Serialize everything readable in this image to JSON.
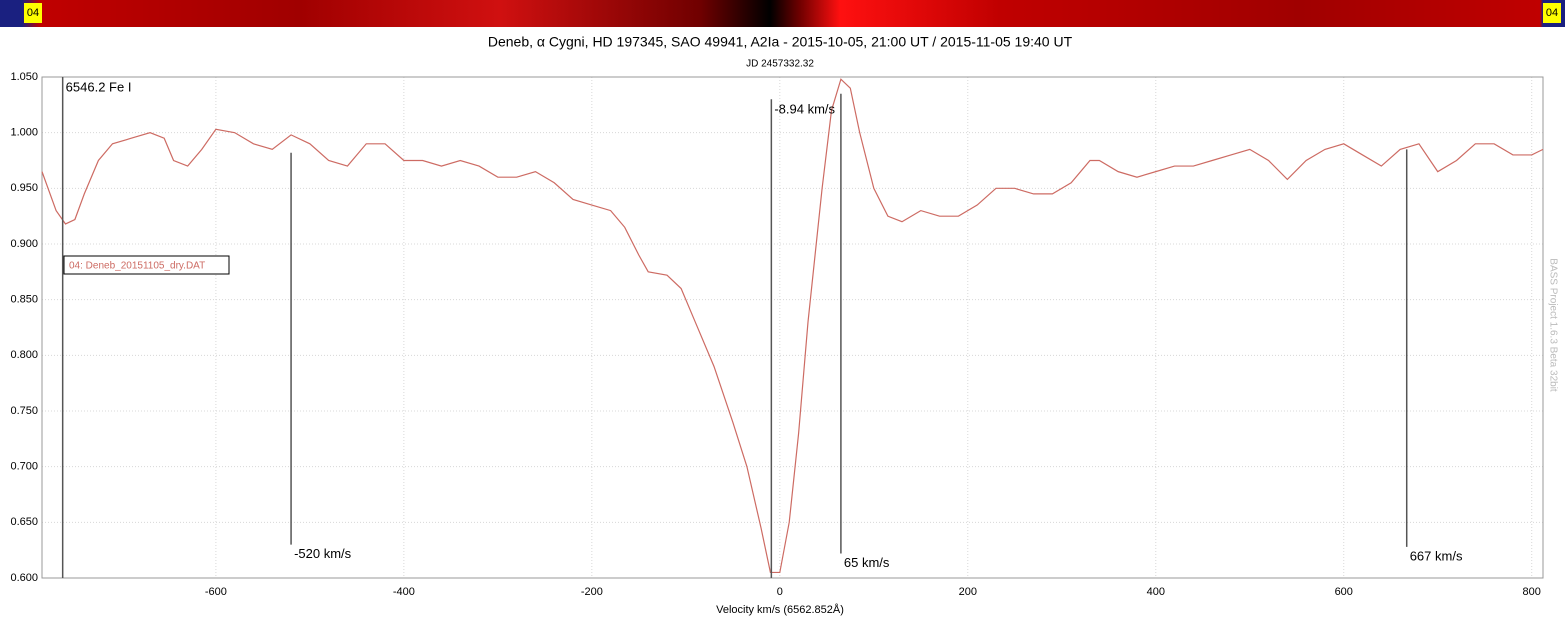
{
  "badge_left": "04",
  "badge_right": "04",
  "watermark": "BASS Project 1.6.3 Beta 32bit",
  "chart_data": {
    "type": "line",
    "title": "Deneb, α Cygni, HD 197345, SAO 49941, A2Ia - 2015-10-05, 21:00 UT / 2015-11-05 19:40 UT",
    "subtitle": "JD 2457332.32",
    "x_label": "Velocity km/s (6562.852Å)",
    "xlim": [
      -785,
      812
    ],
    "ylim": [
      0.6,
      1.05
    ],
    "xticks": [
      -600,
      -400,
      -200,
      0,
      200,
      400,
      600,
      800
    ],
    "yticks": [
      {
        "value": 0.6,
        "label": "0.600"
      },
      {
        "value": 0.65,
        "label": "0.650"
      },
      {
        "value": 0.7,
        "label": "0.700"
      },
      {
        "value": 0.75,
        "label": "0.750"
      },
      {
        "value": 0.8,
        "label": "0.800"
      },
      {
        "value": 0.85,
        "label": "0.850"
      },
      {
        "value": 0.9,
        "label": "0.900"
      },
      {
        "value": 0.95,
        "label": "0.950"
      },
      {
        "value": 1.0,
        "label": "1.000"
      },
      {
        "value": 1.05,
        "label": "1.050"
      }
    ],
    "grid": true,
    "x": [
      -785,
      -770,
      -760,
      -750,
      -740,
      -725,
      -710,
      -690,
      -670,
      -655,
      -645,
      -630,
      -615,
      -600,
      -580,
      -560,
      -540,
      -520,
      -500,
      -480,
      -460,
      -440,
      -420,
      -400,
      -380,
      -360,
      -340,
      -320,
      -300,
      -280,
      -260,
      -240,
      -220,
      -200,
      -180,
      -165,
      -150,
      -140,
      -120,
      -105,
      -90,
      -70,
      -50,
      -35,
      -20,
      -10,
      0,
      10,
      20,
      30,
      45,
      55,
      65,
      75,
      85,
      100,
      115,
      130,
      150,
      170,
      190,
      210,
      230,
      250,
      270,
      290,
      310,
      330,
      340,
      360,
      380,
      400,
      420,
      440,
      460,
      480,
      500,
      520,
      540,
      560,
      580,
      600,
      620,
      640,
      660,
      680,
      700,
      720,
      740,
      760,
      780,
      800,
      812
    ],
    "series": [
      {
        "name": "04: Deneb_20151105_dry.DAT",
        "color": "#cd6b63",
        "values": [
          0.965,
          0.93,
          0.918,
          0.922,
          0.945,
          0.975,
          0.99,
          0.995,
          1.0,
          0.995,
          0.975,
          0.97,
          0.985,
          1.003,
          1.0,
          0.99,
          0.985,
          0.998,
          0.99,
          0.975,
          0.97,
          0.99,
          0.99,
          0.975,
          0.975,
          0.97,
          0.975,
          0.97,
          0.96,
          0.96,
          0.965,
          0.955,
          0.94,
          0.935,
          0.93,
          0.915,
          0.89,
          0.875,
          0.872,
          0.86,
          0.83,
          0.79,
          0.74,
          0.7,
          0.645,
          0.605,
          0.605,
          0.65,
          0.73,
          0.83,
          0.95,
          1.02,
          1.048,
          1.04,
          1.0,
          0.95,
          0.925,
          0.92,
          0.93,
          0.925,
          0.925,
          0.935,
          0.95,
          0.95,
          0.945,
          0.945,
          0.955,
          0.975,
          0.975,
          0.965,
          0.96,
          0.965,
          0.97,
          0.97,
          0.975,
          0.98,
          0.985,
          0.975,
          0.958,
          0.975,
          0.985,
          0.99,
          0.98,
          0.97,
          0.985,
          0.99,
          0.965,
          0.975,
          0.99,
          0.99,
          0.98,
          0.98,
          0.985
        ]
      }
    ],
    "markers": [
      {
        "label": "6546.2 Fe I",
        "x": -763,
        "y_top": 1.05,
        "y_bottom": 0.6
      },
      {
        "label": "-520 km/s",
        "x": -520,
        "y_top": 0.982,
        "y_bottom": 0.63
      },
      {
        "label": "-8.94 km/s",
        "x": -9,
        "y_top": 1.03,
        "y_bottom": 0.6
      },
      {
        "label": "65 km/s",
        "x": 65,
        "y_top": 1.035,
        "y_bottom": 0.622
      },
      {
        "label": "667 km/s",
        "x": 667,
        "y_top": 0.985,
        "y_bottom": 0.628
      }
    ]
  }
}
